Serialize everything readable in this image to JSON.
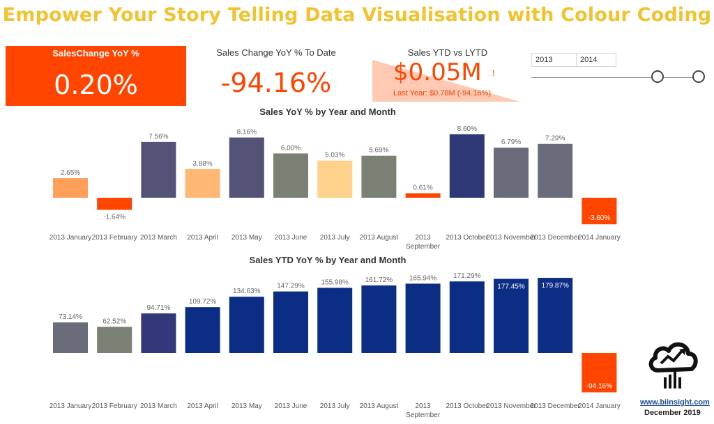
{
  "page_title": "Empower Your Story Telling Data Visualisation with Colour Coding",
  "kpi_card": {
    "title": "SalesChange YoY %",
    "value": "0.20%"
  },
  "todate_card": {
    "title": "Sales Change YoY % To Date",
    "value": "-94.16%"
  },
  "ytd_card": {
    "title": "Sales YTD vs LYTD",
    "value": "$0.05M",
    "flag": "!",
    "subtitle": "Last Year: $0.78M (-94.16%)"
  },
  "slicer": {
    "from": "2013",
    "to": "2014"
  },
  "logo": {
    "url": "www.biinsight.com",
    "date": "December 2019"
  },
  "colors": {
    "accent": "#ff4500",
    "title": "#f2c230",
    "navy": "#0b2d84"
  },
  "chart_data": [
    {
      "type": "bar",
      "title": "Sales YoY % by Year and Month",
      "categories": [
        "2013 January",
        "2013 February",
        "2013 March",
        "2013 April",
        "2013 May",
        "2013 June",
        "2013 July",
        "2013 August",
        "2013 September",
        "2013 October",
        "2013 November",
        "2013 December",
        "2014 January"
      ],
      "values": [
        2.65,
        -1.64,
        7.56,
        3.88,
        8.16,
        6.0,
        5.03,
        5.69,
        0.61,
        8.6,
        6.79,
        7.29,
        -3.6
      ],
      "labels": [
        "2.65%",
        "-1.64%",
        "7.56%",
        "3.88%",
        "8.16%",
        "6.00%",
        "5.03%",
        "5.69%",
        "0.61%",
        "8.60%",
        "6.79%",
        "7.29%",
        "-3.60%"
      ],
      "colors": [
        "#ffa05a",
        "#ff4500",
        "#535378",
        "#ffb874",
        "#535378",
        "#7a8073",
        "#ffd28c",
        "#7a8073",
        "#ff4500",
        "#2e3877",
        "#6a6c7c",
        "#6a6c7c",
        "#ff4500"
      ],
      "ylim": [
        -6,
        9
      ],
      "grid": false
    },
    {
      "type": "bar",
      "title": "Sales YTD YoY % by Year and Month",
      "categories": [
        "2013 January",
        "2013 February",
        "2013 March",
        "2013 April",
        "2013 May",
        "2013 June",
        "2013 July",
        "2013 August",
        "2013 September",
        "2013 October",
        "2013 November",
        "2013 December",
        "2014 January"
      ],
      "values": [
        73.14,
        62.52,
        94.71,
        109.72,
        134.63,
        147.29,
        155.98,
        161.72,
        165.94,
        171.29,
        177.45,
        179.87,
        -94.16
      ],
      "labels": [
        "73.14%",
        "62.52%",
        "94.71%",
        "109.72%",
        "134.63%",
        "147.29%",
        "155.98%",
        "161.72%",
        "165.94%",
        "171.29%",
        "177.45%",
        "179.87%",
        "-94.16%"
      ],
      "colors": [
        "#6a6c7c",
        "#7a8073",
        "#33387a",
        "#0b2d84",
        "#0b2d84",
        "#0b2d84",
        "#0b2d84",
        "#0b2d84",
        "#0b2d84",
        "#0b2d84",
        "#0b2d84",
        "#0b2d84",
        "#ff4500"
      ],
      "ylim": [
        -100,
        200
      ],
      "grid": false
    }
  ]
}
